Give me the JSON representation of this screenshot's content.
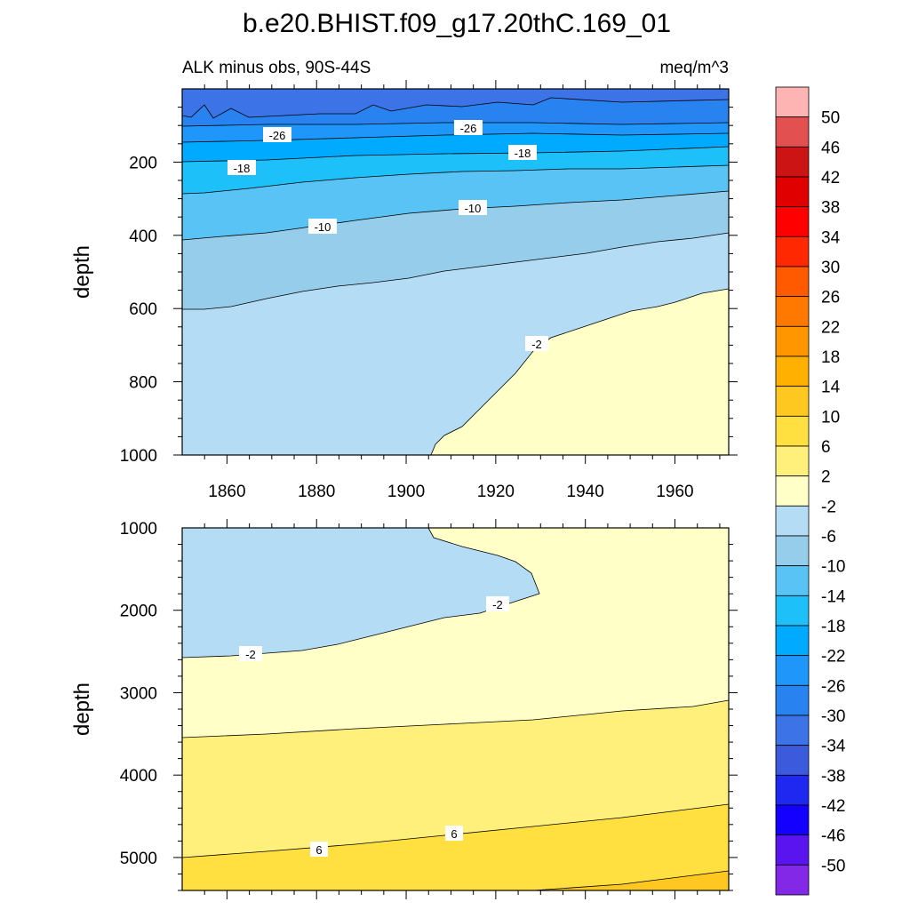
{
  "chart_data": {
    "type": "contour",
    "title": "b.e20.BHIST.f09_g17.20thC.169_01",
    "left_subtitle": "ALK minus obs, 90S-44S",
    "right_subtitle": "meq/m^3",
    "colorbar": {
      "labels": [
        "50",
        "46",
        "42",
        "38",
        "34",
        "30",
        "26",
        "22",
        "18",
        "14",
        "10",
        "6",
        "2",
        "-2",
        "-6",
        "-10",
        "-14",
        "-18",
        "-22",
        "-26",
        "-30",
        "-34",
        "-38",
        "-42",
        "-46",
        "-50"
      ],
      "colors": [
        "#ffb4b4",
        "#e25050",
        "#cc1414",
        "#e00000",
        "#ff0000",
        "#ff2800",
        "#ff5a00",
        "#ff7800",
        "#ff9600",
        "#ffb000",
        "#ffc820",
        "#ffe040",
        "#fff07c",
        "#ffffc8",
        "#b4dcf5",
        "#96cdeb",
        "#5ac3f5",
        "#1ec0fa",
        "#00aaff",
        "#1e96fa",
        "#2882f0",
        "#3c73e6",
        "#3c5adc",
        "#1e28f0",
        "#1400ff",
        "#5a14f0",
        "#8228e6"
      ]
    },
    "panels": [
      {
        "name": "upper",
        "xlabel": "",
        "ylabel": "depth",
        "xlim": [
          1850,
          1972
        ],
        "ylim": [
          1000,
          0
        ],
        "xticks": [
          "1860",
          "1880",
          "1900",
          "1920",
          "1940",
          "1960"
        ],
        "yticks": [
          "200",
          "400",
          "600",
          "800",
          "1000"
        ],
        "contour_labels": [
          "-26",
          "-26",
          "-18",
          "-18",
          "-10",
          "-10",
          "-2"
        ]
      },
      {
        "name": "lower",
        "xlabel": "",
        "ylabel": "depth",
        "xlim": [
          1850,
          1972
        ],
        "ylim": [
          5400,
          1000
        ],
        "xticks": [],
        "yticks": [
          "1000",
          "2000",
          "3000",
          "4000",
          "5000"
        ],
        "contour_labels": [
          "-2",
          "-2",
          "6",
          "6"
        ]
      }
    ]
  }
}
